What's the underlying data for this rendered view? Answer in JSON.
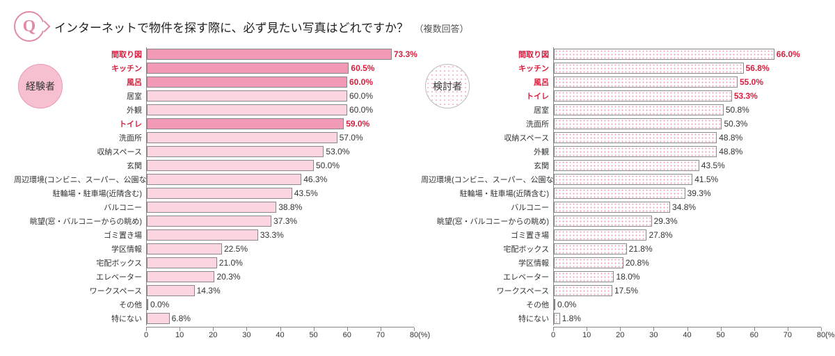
{
  "header": {
    "q_letter": "Q",
    "question": "インターネットで物件を探す際に、必ず見たい写真はどれですか？",
    "sub": "（複数回答）"
  },
  "axis": {
    "xmax": 80,
    "ticks": [
      0,
      10,
      20,
      30,
      40,
      50,
      60,
      70,
      80
    ],
    "unit": "(%)"
  },
  "colors": {
    "highlight_text": "#d81e3e",
    "bar_strong": "#f29ab5",
    "bar_light": "#fbd6e1",
    "bar_border": "#888888",
    "grid": "#cccccc",
    "axis": "#888888",
    "badge_solid_fill": "#f7c0d0",
    "badge_solid_border": "#e69ab5",
    "dot_color": "#f29ab5"
  },
  "charts": [
    {
      "id": "exp",
      "group_label": "経験者",
      "badge_style": "solid",
      "bar_style_normal": "solid-light",
      "bar_style_highlight": "solid-strong",
      "rows": [
        {
          "label": "間取り図",
          "value": 73.3,
          "hl": true
        },
        {
          "label": "キッチン",
          "value": 60.5,
          "hl": true
        },
        {
          "label": "風呂",
          "value": 60.0,
          "hl": true
        },
        {
          "label": "居室",
          "value": 60.0,
          "hl": false
        },
        {
          "label": "外観",
          "value": 60.0,
          "hl": false
        },
        {
          "label": "トイレ",
          "value": 59.0,
          "hl": true
        },
        {
          "label": "洗面所",
          "value": 57.0,
          "hl": false
        },
        {
          "label": "収納スペース",
          "value": 53.0,
          "hl": false
        },
        {
          "label": "玄関",
          "value": 50.0,
          "hl": false
        },
        {
          "label": "周辺環境(コンビニ、スーパー、公園など)",
          "value": 46.3,
          "hl": false
        },
        {
          "label": "駐輪場・駐車場(近隣含む)",
          "value": 43.5,
          "hl": false
        },
        {
          "label": "バルコニー",
          "value": 38.8,
          "hl": false
        },
        {
          "label": "眺望(窓・バルコニーからの眺め)",
          "value": 37.3,
          "hl": false
        },
        {
          "label": "ゴミ置き場",
          "value": 33.3,
          "hl": false
        },
        {
          "label": "学区情報",
          "value": 22.5,
          "hl": false
        },
        {
          "label": "宅配ボックス",
          "value": 21.0,
          "hl": false
        },
        {
          "label": "エレベーター",
          "value": 20.3,
          "hl": false
        },
        {
          "label": "ワークスペース",
          "value": 14.3,
          "hl": false
        },
        {
          "label": "その他",
          "value": 0.0,
          "hl": false
        },
        {
          "label": "特にない",
          "value": 6.8,
          "hl": false
        }
      ]
    },
    {
      "id": "cons",
      "group_label": "検討者",
      "badge_style": "dotted",
      "bar_style_normal": "dotted",
      "bar_style_highlight": "dotted",
      "rows": [
        {
          "label": "間取り図",
          "value": 66.0,
          "hl": true
        },
        {
          "label": "キッチン",
          "value": 56.8,
          "hl": true
        },
        {
          "label": "風呂",
          "value": 55.0,
          "hl": true
        },
        {
          "label": "トイレ",
          "value": 53.3,
          "hl": true
        },
        {
          "label": "居室",
          "value": 50.8,
          "hl": false
        },
        {
          "label": "洗面所",
          "value": 50.3,
          "hl": false
        },
        {
          "label": "収納スペース",
          "value": 48.8,
          "hl": false
        },
        {
          "label": "外観",
          "value": 48.8,
          "hl": false
        },
        {
          "label": "玄関",
          "value": 43.5,
          "hl": false
        },
        {
          "label": "周辺環境(コンビニ、スーパー、公園など)",
          "value": 41.5,
          "hl": false
        },
        {
          "label": "駐輪場・駐車場(近隣含む)",
          "value": 39.3,
          "hl": false
        },
        {
          "label": "バルコニー",
          "value": 34.8,
          "hl": false
        },
        {
          "label": "眺望(窓・バルコニーからの眺め)",
          "value": 29.3,
          "hl": false
        },
        {
          "label": "ゴミ置き場",
          "value": 27.8,
          "hl": false
        },
        {
          "label": "宅配ボックス",
          "value": 21.8,
          "hl": false
        },
        {
          "label": "学区情報",
          "value": 20.8,
          "hl": false
        },
        {
          "label": "エレベーター",
          "value": 18.0,
          "hl": false
        },
        {
          "label": "ワークスペース",
          "value": 17.5,
          "hl": false
        },
        {
          "label": "その他",
          "value": 0.0,
          "hl": false
        },
        {
          "label": "特にない",
          "value": 1.8,
          "hl": false
        }
      ]
    }
  ]
}
